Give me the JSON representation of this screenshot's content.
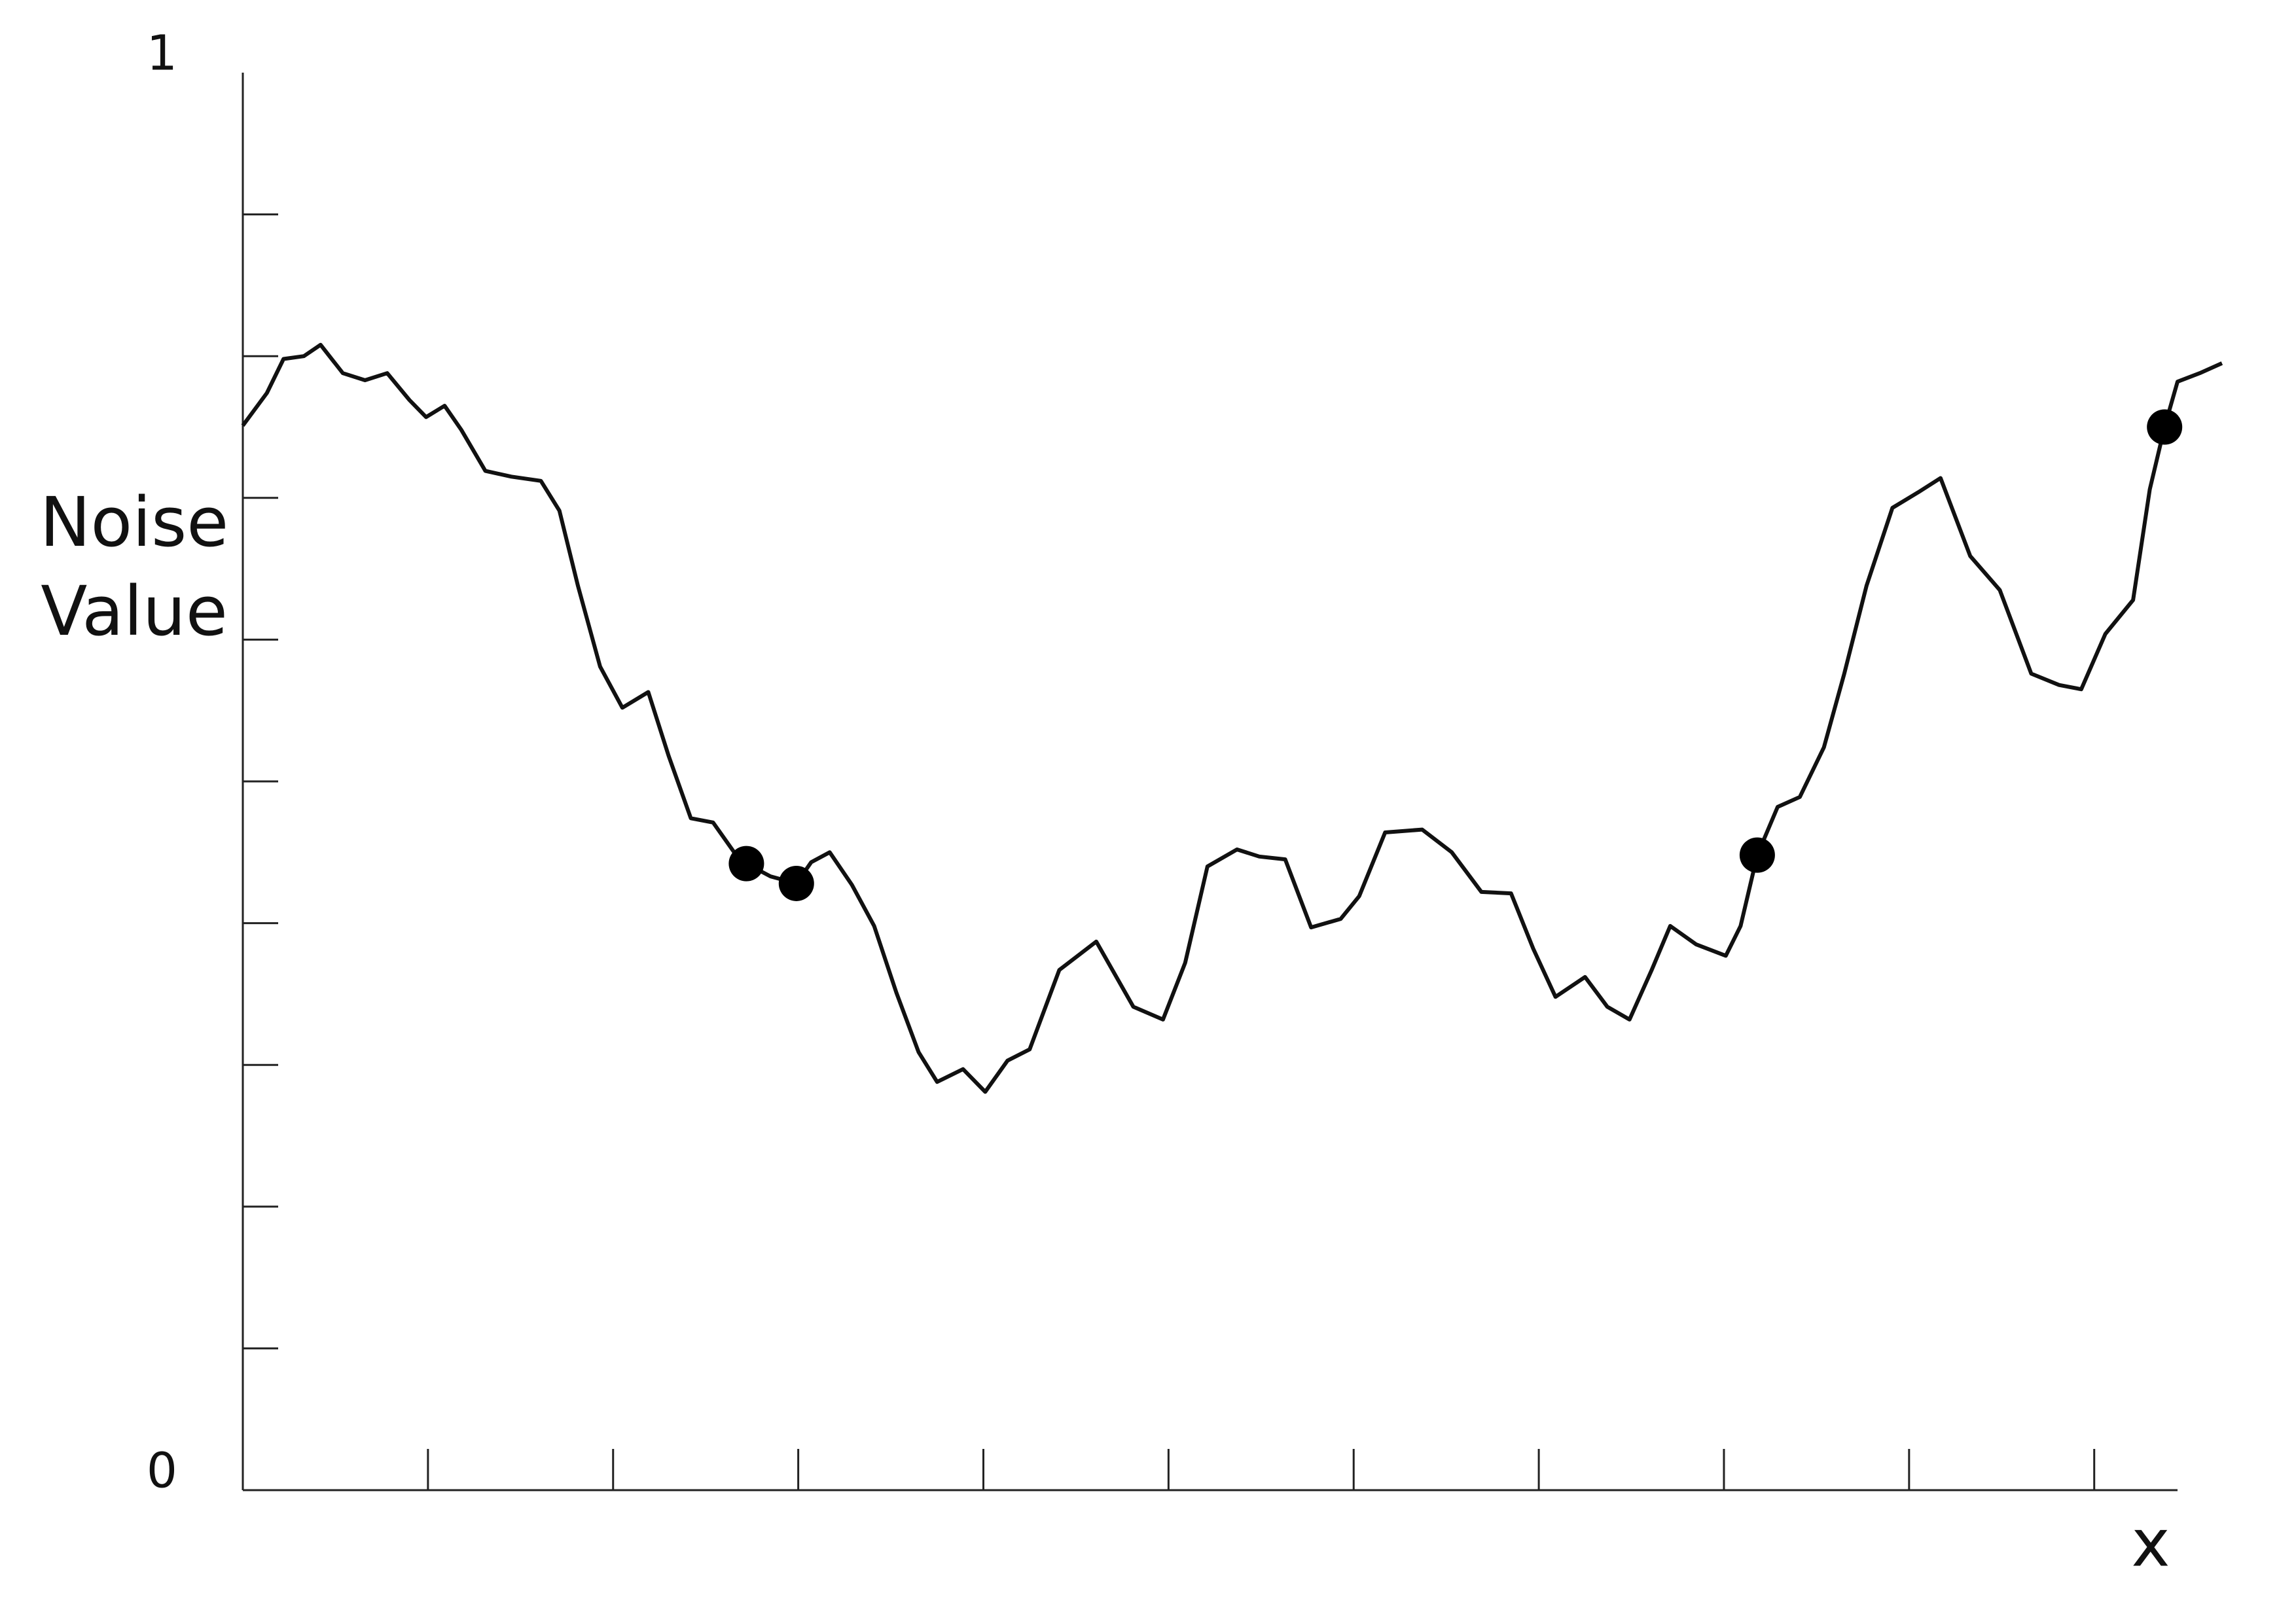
{
  "chart_data": {
    "type": "line",
    "y_label": "Noise Value",
    "x_label": "x",
    "xlim": [
      0,
      10.45
    ],
    "ylim": [
      0,
      1
    ],
    "xticks": [
      {
        "value": 1,
        "label": null
      },
      {
        "value": 2,
        "label": null
      },
      {
        "value": 3,
        "label": null
      },
      {
        "value": 4,
        "label": null
      },
      {
        "value": 5,
        "label": null
      },
      {
        "value": 6,
        "label": null
      },
      {
        "value": 7,
        "label": null
      },
      {
        "value": 8,
        "label": null
      },
      {
        "value": 9,
        "label": null
      },
      {
        "value": 10,
        "label": null
      }
    ],
    "yticks": [
      0,
      {
        "value": 0.1,
        "label": null
      },
      {
        "value": 0.2,
        "label": null
      },
      {
        "value": 0.3,
        "label": null
      },
      {
        "value": 0.4,
        "label": null
      },
      {
        "value": 0.5,
        "label": null
      },
      {
        "value": 0.6,
        "label": null
      },
      {
        "value": 0.7,
        "label": null
      },
      {
        "value": 0.8,
        "label": null
      },
      {
        "value": 0.9,
        "label": null
      },
      1
    ],
    "x": [
      0,
      0.13,
      0.22,
      0.33,
      0.42,
      0.54,
      0.66,
      0.78,
      0.9,
      0.99,
      1.09,
      1.18,
      1.31,
      1.45,
      1.61,
      1.71,
      1.81,
      1.93,
      2.05,
      2.19,
      2.3,
      2.42,
      2.54,
      2.67,
      2.72,
      2.85,
      2.99,
      3.07,
      3.17,
      3.29,
      3.41,
      3.53,
      3.65,
      3.75,
      3.89,
      4.01,
      4.13,
      4.25,
      4.41,
      4.61,
      4.81,
      4.97,
      5.09,
      5.21,
      5.37,
      5.49,
      5.63,
      5.77,
      5.93,
      6.03,
      6.17,
      6.37,
      6.53,
      6.69,
      6.85,
      6.97,
      7.09,
      7.25,
      7.37,
      7.49,
      7.61,
      7.71,
      7.85,
      8.01,
      8.09,
      8.18,
      8.29,
      8.41,
      8.54,
      8.65,
      8.77,
      8.91,
      9.05,
      9.17,
      9.33,
      9.49,
      9.66,
      9.81,
      9.93,
      10.06,
      10.21,
      10.3,
      10.38,
      10.45,
      10.57,
      10.69
    ],
    "series": [
      {
        "color": "#111111",
        "values": [
          0.751,
          0.774,
          0.798,
          0.8,
          0.808,
          0.788,
          0.783,
          0.788,
          0.769,
          0.757,
          0.765,
          0.748,
          0.719,
          0.715,
          0.712,
          0.691,
          0.638,
          0.581,
          0.552,
          0.563,
          0.518,
          0.474,
          0.471,
          0.447,
          0.442,
          0.433,
          0.428,
          0.443,
          0.45,
          0.427,
          0.398,
          0.351,
          0.309,
          0.288,
          0.297,
          0.281,
          0.303,
          0.311,
          0.367,
          0.387,
          0.341,
          0.332,
          0.372,
          0.44,
          0.452,
          0.447,
          0.445,
          0.397,
          0.403,
          0.419,
          0.464,
          0.466,
          0.45,
          0.422,
          0.421,
          0.382,
          0.348,
          0.362,
          0.341,
          0.332,
          0.367,
          0.398,
          0.385,
          0.377,
          0.398,
          0.448,
          0.482,
          0.489,
          0.524,
          0.576,
          0.638,
          0.693,
          0.704,
          0.714,
          0.659,
          0.635,
          0.576,
          0.568,
          0.565,
          0.604,
          0.628,
          0.706,
          0.75,
          0.782,
          0.788,
          0.795
        ]
      }
    ],
    "points": {
      "color": "#000000",
      "x": [
        2.72,
        2.99,
        8.18,
        10.38
      ],
      "values": [
        0.442,
        0.428,
        0.448,
        0.75
      ]
    }
  }
}
